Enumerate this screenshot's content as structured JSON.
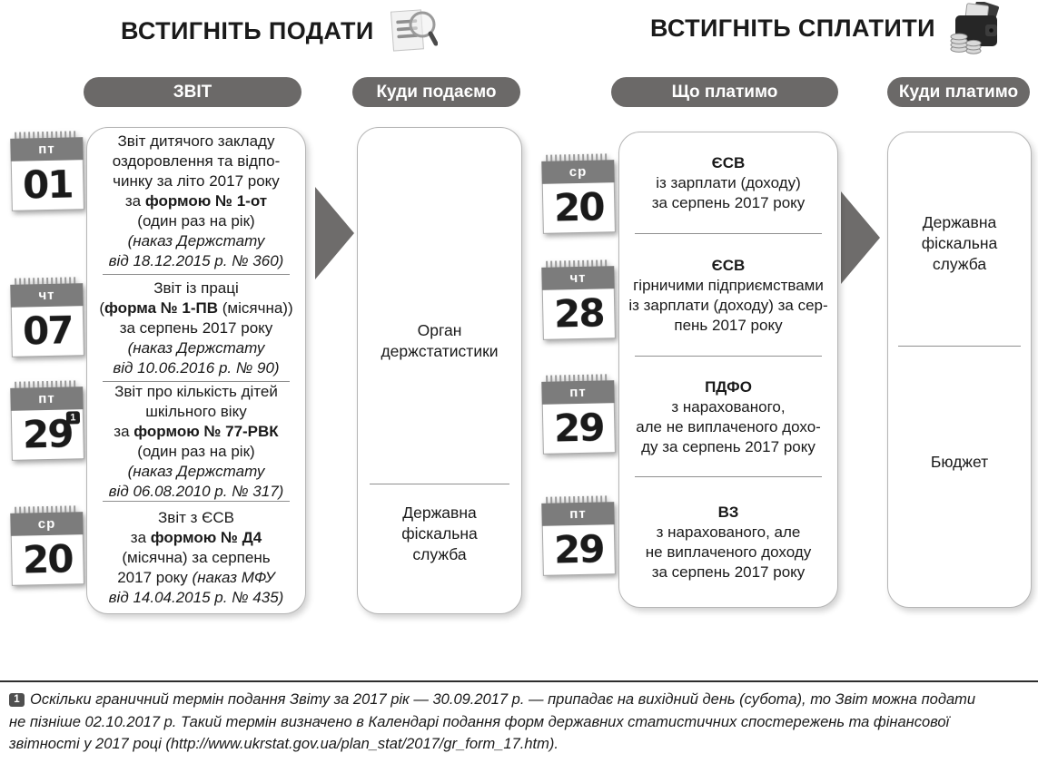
{
  "left": {
    "title": "ВСТИГНІТЬ ПОДАТИ",
    "icon": "magnifier-document-icon",
    "col_report": "ЗВІТ",
    "col_dest": "Куди подаємо",
    "entries": [
      {
        "day": "пт",
        "date": "01",
        "marker": "",
        "segments": [
          {
            "t": "Звіт дитячого закладу\nоздоровлення та відпо-\nчинку за літо 2017 року\nза ",
            "s": "r"
          },
          {
            "t": "формою № 1-от",
            "s": "b"
          },
          {
            "t": "\n(один раз на рік)\n",
            "s": "r"
          },
          {
            "t": "(наказ Держстату\nвід 18.12.2015 р. № 360)",
            "s": "i"
          }
        ]
      },
      {
        "day": "чт",
        "date": "07",
        "marker": "",
        "segments": [
          {
            "t": "Звіт із праці\n(",
            "s": "r"
          },
          {
            "t": "форма № 1-ПВ",
            "s": "b"
          },
          {
            "t": " (місячна))\nза серпень 2017 року\n",
            "s": "r"
          },
          {
            "t": "(наказ Держстату\nвід 10.06.2016 р. № 90)",
            "s": "i"
          }
        ]
      },
      {
        "day": "пт",
        "date": "29",
        "marker": "1",
        "segments": [
          {
            "t": "Звіт про кількість дітей\nшкільного віку\nза ",
            "s": "r"
          },
          {
            "t": "формою № 77-РВК",
            "s": "b"
          },
          {
            "t": "\n(один раз на рік)\n",
            "s": "r"
          },
          {
            "t": "(наказ Держстату\nвід 06.08.2010 р. № 317)",
            "s": "i"
          }
        ]
      },
      {
        "day": "ср",
        "date": "20",
        "marker": "",
        "segments": [
          {
            "t": "Звіт з ЄСВ\nза ",
            "s": "r"
          },
          {
            "t": "формою № Д4",
            "s": "b"
          },
          {
            "t": "\n(місячна) за серпень\n2017 року ",
            "s": "r"
          },
          {
            "t": "(наказ МФУ\nвід 14.04.2015 р. № 435)",
            "s": "i"
          }
        ]
      }
    ],
    "destinations": [
      "Орган\nдержстатистики",
      "Державна\nфіскальна\nслужба"
    ]
  },
  "right": {
    "title": "ВСТИГНІТЬ СПЛАТИТИ",
    "icon": "wallet-coins-icon",
    "col_what": "Що платимо",
    "col_dest": "Куди платимо",
    "entries": [
      {
        "day": "ср",
        "date": "20",
        "marker": "",
        "segments": [
          {
            "t": "ЄСВ",
            "s": "b"
          },
          {
            "t": "\nіз зарплати (доходу)\nза серпень 2017 року",
            "s": "r"
          }
        ]
      },
      {
        "day": "чт",
        "date": "28",
        "marker": "",
        "segments": [
          {
            "t": "ЄСВ",
            "s": "b"
          },
          {
            "t": "\nгірничими підприємствами\nіз зарплати (доходу) за сер-\nпень 2017 року",
            "s": "r"
          }
        ]
      },
      {
        "day": "пт",
        "date": "29",
        "marker": "",
        "segments": [
          {
            "t": "ПДФО",
            "s": "b"
          },
          {
            "t": "\nз нарахованого,\nале не виплаченого дохо-\nду за серпень 2017 року",
            "s": "r"
          }
        ]
      },
      {
        "day": "пт",
        "date": "29",
        "marker": "",
        "segments": [
          {
            "t": "ВЗ",
            "s": "b"
          },
          {
            "t": "\nз нарахованого, але\nне виплаченого доходу\nза серпень 2017 року",
            "s": "r"
          }
        ]
      }
    ],
    "destinations": [
      "Державна\nфіскальна\nслужба",
      "Бюджет"
    ]
  },
  "footnote": {
    "marker": "1",
    "text": "Оскільки граничний термін подання Звіту за 2017 рік — 30.09.2017 р. — припадає на вихідний день (субота), то Звіт можна подати\nне пізніше 02.10.2017 р. Такий термін визначено в Календарі подання форм державних статистичних спостережень та фінансової\nзвітності у 2017 році (http://www.ukrstat.gov.ua/plan_stat/2017/gr_form_17.htm)."
  },
  "colors": {
    "pill_bg": "#6b6968",
    "arrow": "#6e6c6b",
    "calendar_header": "#7c7c7c",
    "box_border": "#b5b5b5",
    "divider": "#8f8f8f",
    "footnote_badge_bg": "#4f4f4f"
  }
}
